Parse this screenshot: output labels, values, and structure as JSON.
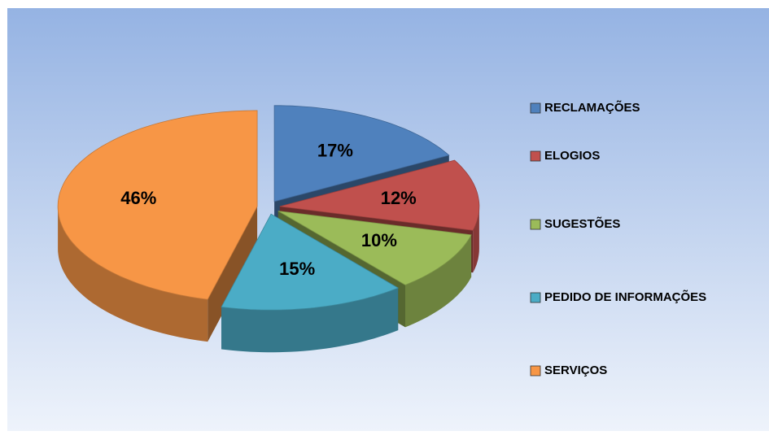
{
  "chart_data": {
    "type": "pie",
    "categories": [
      "RECLAMAÇÕES",
      "ELOGIOS",
      "SUGESTÕES",
      "PEDIDO DE INFORMAÇÕES",
      "SERVIÇOS"
    ],
    "values": [
      17,
      12,
      10,
      15,
      46
    ],
    "value_labels": [
      "17%",
      "12%",
      "10%",
      "15%",
      "46%"
    ],
    "colors": [
      "#4f81bd",
      "#c0504d",
      "#9bbb59",
      "#4bacc6",
      "#f79646"
    ],
    "legend": "right"
  }
}
